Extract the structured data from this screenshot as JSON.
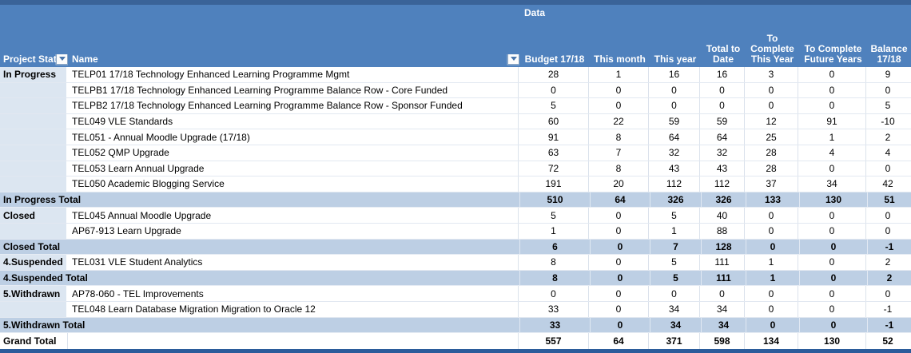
{
  "header": {
    "data_label": "Data",
    "project_status_label": "Project Stat",
    "name_label": "Name"
  },
  "table": {
    "columns": [
      {
        "label": "Budget 17/18"
      },
      {
        "label": "This month"
      },
      {
        "label": "This year"
      },
      {
        "label": "Total to Date"
      },
      {
        "label": "To Complete This Year"
      },
      {
        "label": "To Complete Future Years"
      },
      {
        "label": "Balance 17/18"
      }
    ],
    "rows": [
      {
        "type": "data",
        "status": "In Progress",
        "name": "TELP01 17/18 Technology Enhanced Learning Programme Mgmt",
        "values": [
          28,
          1,
          16,
          16,
          3,
          0,
          9
        ]
      },
      {
        "type": "data",
        "status": "",
        "name": "TELPB1 17/18 Technology Enhanced Learning Programme Balance Row - Core Funded",
        "values": [
          0,
          0,
          0,
          0,
          0,
          0,
          0
        ]
      },
      {
        "type": "data",
        "status": "",
        "name": "TELPB2 17/18 Technology Enhanced Learning Programme Balance Row - Sponsor Funded",
        "values": [
          5,
          0,
          0,
          0,
          0,
          0,
          5
        ]
      },
      {
        "type": "data",
        "status": "",
        "name": "TEL049 VLE Standards",
        "values": [
          60,
          22,
          59,
          59,
          12,
          91,
          -10
        ]
      },
      {
        "type": "data",
        "status": "",
        "name": "TEL051 - Annual Moodle Upgrade (17/18)",
        "values": [
          91,
          8,
          64,
          64,
          25,
          1,
          2
        ]
      },
      {
        "type": "data",
        "status": "",
        "name": "TEL052 QMP Upgrade",
        "values": [
          63,
          7,
          32,
          32,
          28,
          4,
          4
        ]
      },
      {
        "type": "data",
        "status": "",
        "name": "TEL053 Learn Annual Upgrade",
        "values": [
          72,
          8,
          43,
          43,
          28,
          0,
          0
        ]
      },
      {
        "type": "data",
        "status": "",
        "name": "TEL050 Academic Blogging Service",
        "values": [
          191,
          20,
          112,
          112,
          37,
          34,
          42
        ]
      },
      {
        "type": "subtotal",
        "label": "In Progress Total",
        "values": [
          510,
          64,
          326,
          326,
          133,
          130,
          51
        ]
      },
      {
        "type": "data",
        "status": "Closed",
        "name": "TEL045 Annual Moodle Upgrade",
        "values": [
          5,
          0,
          5,
          40,
          0,
          0,
          0
        ]
      },
      {
        "type": "data",
        "status": "",
        "name": "AP67-913 Learn Upgrade",
        "values": [
          1,
          0,
          1,
          88,
          0,
          0,
          0
        ]
      },
      {
        "type": "subtotal",
        "label": "Closed Total",
        "values": [
          6,
          0,
          7,
          128,
          0,
          0,
          -1
        ]
      },
      {
        "type": "data",
        "status": "4.Suspended",
        "name": "TEL031 VLE Student Analytics",
        "values": [
          8,
          0,
          5,
          111,
          1,
          0,
          2
        ]
      },
      {
        "type": "subtotal",
        "label": "4.Suspended Total",
        "values": [
          8,
          0,
          5,
          111,
          1,
          0,
          2
        ]
      },
      {
        "type": "data",
        "status": "5.Withdrawn",
        "name": "AP78-060 - TEL Improvements",
        "values": [
          0,
          0,
          0,
          0,
          0,
          0,
          0
        ]
      },
      {
        "type": "data",
        "status": "",
        "name": "TEL048 Learn Database Migration Migration to Oracle 12",
        "values": [
          33,
          0,
          34,
          34,
          0,
          0,
          -1
        ]
      },
      {
        "type": "subtotal",
        "label": "5.Withdrawn Total",
        "values": [
          33,
          0,
          34,
          34,
          0,
          0,
          -1
        ]
      },
      {
        "type": "grand",
        "label": "Grand Total",
        "values": [
          557,
          64,
          371,
          598,
          134,
          130,
          52
        ]
      }
    ]
  },
  "colors": {
    "header_blue": "#4f81bd",
    "top_edge_blue": "#3a6398",
    "bottom_edge_blue": "#2b5c9b",
    "subtotal_band_blue": "#bdcfe4",
    "row_label_tint": "#dce6f1"
  }
}
